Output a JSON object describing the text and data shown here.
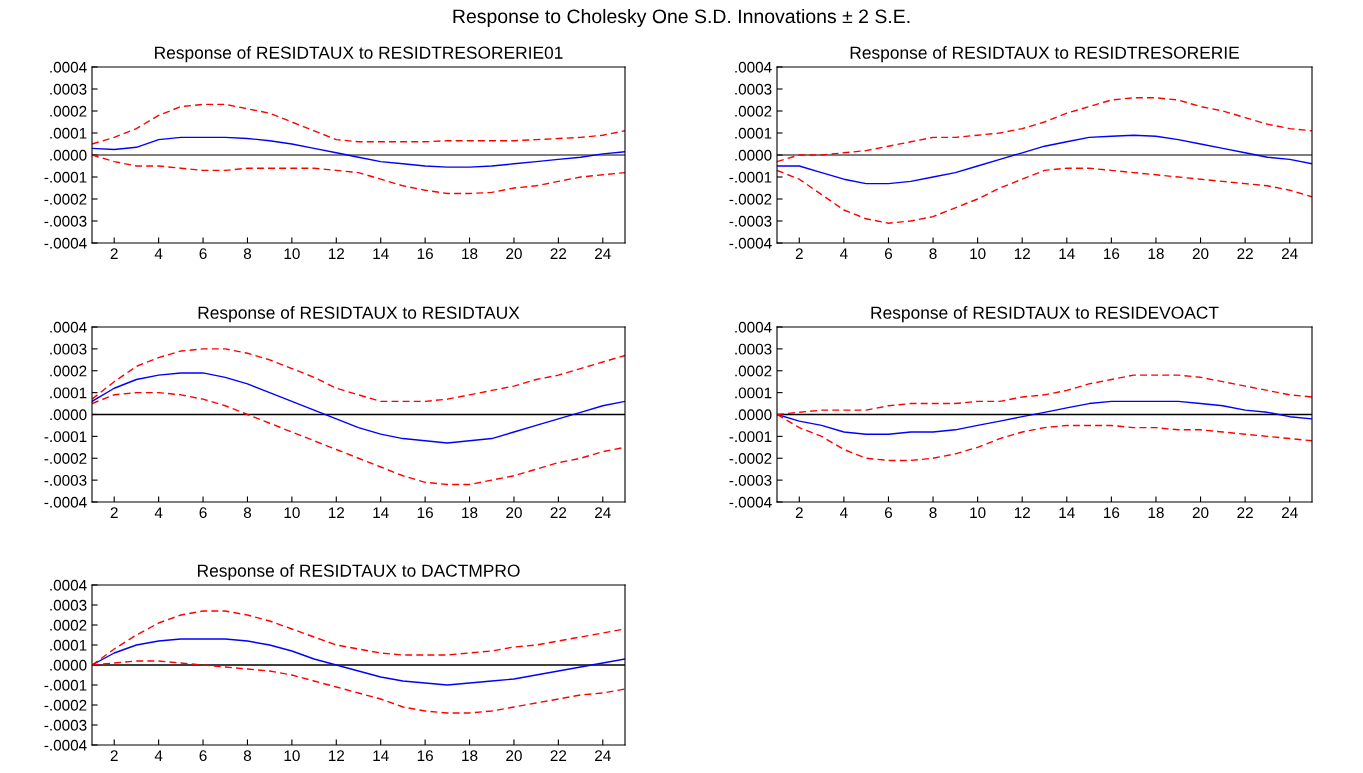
{
  "chart_data": [
    {
      "type": "line",
      "title": "Response of RESIDTAUX to RESIDTRESORERIE01",
      "annotations": [
        "Response to Cholesky One S.D. Innovations ± 2 S.E."
      ],
      "x": [
        1,
        2,
        3,
        4,
        5,
        6,
        7,
        8,
        9,
        10,
        11,
        12,
        13,
        14,
        15,
        16,
        17,
        18,
        19,
        20,
        21,
        22,
        23,
        24,
        25
      ],
      "xlim": [
        1,
        25
      ],
      "xticks": [
        2,
        4,
        6,
        8,
        10,
        12,
        14,
        16,
        18,
        20,
        22,
        24
      ],
      "ylim": [
        -0.0004,
        0.0004
      ],
      "yticks": [
        {
          "value": -0.0004,
          "label": "-.0004"
        },
        {
          "value": -0.0003,
          "label": "-.0003"
        },
        {
          "value": -0.0002,
          "label": "-.0002"
        },
        {
          "value": -0.0001,
          "label": "-.0001"
        },
        {
          "value": 0,
          "label": ".0000"
        },
        {
          "value": 0.0001,
          "label": ".0001"
        },
        {
          "value": 0.0002,
          "label": ".0002"
        },
        {
          "value": 0.0003,
          "label": ".0003"
        },
        {
          "value": 0.0004,
          "label": ".0004"
        }
      ],
      "ref_lines": [
        {
          "axis": "y",
          "value": 0,
          "color": "#000000"
        }
      ],
      "series": [
        {
          "color": "#0000ff",
          "line_style": "solid",
          "values": [
            3e-05,
            2.5e-05,
            3.5e-05,
            7e-05,
            8e-05,
            8e-05,
            8e-05,
            7.5e-05,
            6.5e-05,
            5e-05,
            3e-05,
            1e-05,
            -1e-05,
            -3e-05,
            -4e-05,
            -5e-05,
            -5.5e-05,
            -5.5e-05,
            -5e-05,
            -4e-05,
            -3e-05,
            -2e-05,
            -1e-05,
            5e-06,
            1.5e-05
          ]
        },
        {
          "color": "#ff0000",
          "line_style": "dashed",
          "values": [
            5e-05,
            8e-05,
            0.00012,
            0.00018,
            0.00022,
            0.00023,
            0.00023,
            0.00021,
            0.00019,
            0.00015,
            0.00011,
            7e-05,
            6e-05,
            6e-05,
            6e-05,
            6e-05,
            6.5e-05,
            6.5e-05,
            6.5e-05,
            6.5e-05,
            7e-05,
            7.5e-05,
            8e-05,
            9e-05,
            0.00011
          ]
        },
        {
          "color": "#ff0000",
          "line_style": "dashed",
          "values": [
            0,
            -3e-05,
            -5e-05,
            -5e-05,
            -6e-05,
            -7e-05,
            -7e-05,
            -6e-05,
            -6e-05,
            -6e-05,
            -6e-05,
            -7e-05,
            -8e-05,
            -0.00011,
            -0.00014,
            -0.00016,
            -0.000175,
            -0.000175,
            -0.00017,
            -0.00015,
            -0.00014,
            -0.00012,
            -0.0001,
            -9e-05,
            -8e-05
          ]
        }
      ]
    },
    {
      "type": "line",
      "title": "Response of RESIDTAUX to RESIDTRESORERIE",
      "x": [
        1,
        2,
        3,
        4,
        5,
        6,
        7,
        8,
        9,
        10,
        11,
        12,
        13,
        14,
        15,
        16,
        17,
        18,
        19,
        20,
        21,
        22,
        23,
        24,
        25
      ],
      "xlim": [
        1,
        25
      ],
      "xticks": [
        2,
        4,
        6,
        8,
        10,
        12,
        14,
        16,
        18,
        20,
        22,
        24
      ],
      "ylim": [
        -0.0004,
        0.0004
      ],
      "yticks": [
        {
          "value": -0.0004,
          "label": "-.0004"
        },
        {
          "value": -0.0003,
          "label": "-.0003"
        },
        {
          "value": -0.0002,
          "label": "-.0002"
        },
        {
          "value": -0.0001,
          "label": "-.0001"
        },
        {
          "value": 0,
          "label": ".0000"
        },
        {
          "value": 0.0001,
          "label": ".0001"
        },
        {
          "value": 0.0002,
          "label": ".0002"
        },
        {
          "value": 0.0003,
          "label": ".0003"
        },
        {
          "value": 0.0004,
          "label": ".0004"
        }
      ],
      "ref_lines": [
        {
          "axis": "y",
          "value": 0,
          "color": "#000000"
        }
      ],
      "series": [
        {
          "color": "#0000ff",
          "line_style": "solid",
          "values": [
            -5e-05,
            -5e-05,
            -8e-05,
            -0.00011,
            -0.00013,
            -0.00013,
            -0.00012,
            -0.0001,
            -8e-05,
            -5e-05,
            -2e-05,
            1e-05,
            4e-05,
            6e-05,
            8e-05,
            8.5e-05,
            9e-05,
            8.5e-05,
            7e-05,
            5e-05,
            3e-05,
            1e-05,
            -1e-05,
            -2e-05,
            -4e-05
          ]
        },
        {
          "color": "#ff0000",
          "line_style": "dashed",
          "values": [
            -3e-05,
            0,
            0,
            1e-05,
            2e-05,
            4e-05,
            6e-05,
            8e-05,
            8e-05,
            9e-05,
            0.0001,
            0.00012,
            0.00015,
            0.00019,
            0.00022,
            0.00025,
            0.00026,
            0.00026,
            0.00025,
            0.00022,
            0.0002,
            0.00017,
            0.00014,
            0.00012,
            0.00011
          ]
        },
        {
          "color": "#ff0000",
          "line_style": "dashed",
          "values": [
            -7e-05,
            -0.00011,
            -0.00018,
            -0.00025,
            -0.00029,
            -0.00031,
            -0.0003,
            -0.00028,
            -0.00024,
            -0.0002,
            -0.00015,
            -0.00011,
            -7e-05,
            -6e-05,
            -6e-05,
            -7e-05,
            -8e-05,
            -9e-05,
            -0.0001,
            -0.00011,
            -0.00012,
            -0.00013,
            -0.00014,
            -0.00016,
            -0.00019
          ]
        }
      ]
    },
    {
      "type": "line",
      "title": "Response of RESIDTAUX to RESIDTAUX",
      "x": [
        1,
        2,
        3,
        4,
        5,
        6,
        7,
        8,
        9,
        10,
        11,
        12,
        13,
        14,
        15,
        16,
        17,
        18,
        19,
        20,
        21,
        22,
        23,
        24,
        25
      ],
      "xlim": [
        1,
        25
      ],
      "xticks": [
        2,
        4,
        6,
        8,
        10,
        12,
        14,
        16,
        18,
        20,
        22,
        24
      ],
      "ylim": [
        -0.0004,
        0.0004
      ],
      "yticks": [
        {
          "value": -0.0004,
          "label": "-.0004"
        },
        {
          "value": -0.0003,
          "label": "-.0003"
        },
        {
          "value": -0.0002,
          "label": "-.0002"
        },
        {
          "value": -0.0001,
          "label": "-.0001"
        },
        {
          "value": 0,
          "label": ".0000"
        },
        {
          "value": 0.0001,
          "label": ".0001"
        },
        {
          "value": 0.0002,
          "label": ".0002"
        },
        {
          "value": 0.0003,
          "label": ".0003"
        },
        {
          "value": 0.0004,
          "label": ".0004"
        }
      ],
      "ref_lines": [
        {
          "axis": "y",
          "value": 0,
          "color": "#000000"
        }
      ],
      "series": [
        {
          "color": "#0000ff",
          "line_style": "solid",
          "values": [
            6e-05,
            0.00012,
            0.00016,
            0.00018,
            0.00019,
            0.00019,
            0.00017,
            0.00014,
            0.0001,
            6e-05,
            2e-05,
            -2e-05,
            -6e-05,
            -9e-05,
            -0.00011,
            -0.00012,
            -0.00013,
            -0.00012,
            -0.00011,
            -8e-05,
            -5e-05,
            -2e-05,
            1e-05,
            4e-05,
            6e-05
          ]
        },
        {
          "color": "#ff0000",
          "line_style": "dashed",
          "values": [
            7e-05,
            0.00015,
            0.00022,
            0.00026,
            0.00029,
            0.0003,
            0.0003,
            0.00028,
            0.00025,
            0.00021,
            0.00017,
            0.00012,
            9e-05,
            6e-05,
            6e-05,
            6e-05,
            7e-05,
            9e-05,
            0.00011,
            0.00013,
            0.00016,
            0.00018,
            0.00021,
            0.00024,
            0.00027
          ]
        },
        {
          "color": "#ff0000",
          "line_style": "dashed",
          "values": [
            5e-05,
            9e-05,
            0.0001,
            0.0001,
            9e-05,
            7e-05,
            4e-05,
            0,
            -4e-05,
            -8e-05,
            -0.00012,
            -0.00016,
            -0.0002,
            -0.00024,
            -0.00028,
            -0.00031,
            -0.00032,
            -0.00032,
            -0.0003,
            -0.00028,
            -0.00025,
            -0.00022,
            -0.0002,
            -0.00017,
            -0.00015
          ]
        }
      ]
    },
    {
      "type": "line",
      "title": "Response of RESIDTAUX to RESIDEVOACT",
      "x": [
        1,
        2,
        3,
        4,
        5,
        6,
        7,
        8,
        9,
        10,
        11,
        12,
        13,
        14,
        15,
        16,
        17,
        18,
        19,
        20,
        21,
        22,
        23,
        24,
        25
      ],
      "xlim": [
        1,
        25
      ],
      "xticks": [
        2,
        4,
        6,
        8,
        10,
        12,
        14,
        16,
        18,
        20,
        22,
        24
      ],
      "ylim": [
        -0.0004,
        0.0004
      ],
      "yticks": [
        {
          "value": -0.0004,
          "label": "-.0004"
        },
        {
          "value": -0.0003,
          "label": "-.0003"
        },
        {
          "value": -0.0002,
          "label": "-.0002"
        },
        {
          "value": -0.0001,
          "label": "-.0001"
        },
        {
          "value": 0,
          "label": ".0000"
        },
        {
          "value": 0.0001,
          "label": ".0001"
        },
        {
          "value": 0.0002,
          "label": ".0002"
        },
        {
          "value": 0.0003,
          "label": ".0003"
        },
        {
          "value": 0.0004,
          "label": ".0004"
        }
      ],
      "ref_lines": [
        {
          "axis": "y",
          "value": 0,
          "color": "#000000"
        }
      ],
      "series": [
        {
          "color": "#0000ff",
          "line_style": "solid",
          "values": [
            0,
            -3e-05,
            -5e-05,
            -8e-05,
            -9e-05,
            -9e-05,
            -8e-05,
            -8e-05,
            -7e-05,
            -5e-05,
            -3e-05,
            -1e-05,
            1e-05,
            3e-05,
            5e-05,
            6e-05,
            6e-05,
            6e-05,
            6e-05,
            5e-05,
            4e-05,
            2e-05,
            1e-05,
            -1e-05,
            -2e-05
          ]
        },
        {
          "color": "#ff0000",
          "line_style": "dashed",
          "values": [
            0,
            1e-05,
            2e-05,
            2e-05,
            2e-05,
            4e-05,
            5e-05,
            5e-05,
            5e-05,
            6e-05,
            6e-05,
            8e-05,
            9e-05,
            0.00011,
            0.00014,
            0.00016,
            0.00018,
            0.00018,
            0.00018,
            0.00017,
            0.00015,
            0.00013,
            0.00011,
            9e-05,
            8e-05
          ]
        },
        {
          "color": "#ff0000",
          "line_style": "dashed",
          "values": [
            0,
            -6e-05,
            -0.0001,
            -0.00016,
            -0.0002,
            -0.00021,
            -0.00021,
            -0.0002,
            -0.00018,
            -0.00015,
            -0.00011,
            -8e-05,
            -6e-05,
            -5e-05,
            -5e-05,
            -5e-05,
            -6e-05,
            -6e-05,
            -7e-05,
            -7e-05,
            -8e-05,
            -9e-05,
            -0.0001,
            -0.00011,
            -0.00012
          ]
        }
      ]
    },
    {
      "type": "line",
      "title": "Response of RESIDTAUX to DACTMPRO",
      "x": [
        1,
        2,
        3,
        4,
        5,
        6,
        7,
        8,
        9,
        10,
        11,
        12,
        13,
        14,
        15,
        16,
        17,
        18,
        19,
        20,
        21,
        22,
        23,
        24,
        25
      ],
      "xlim": [
        1,
        25
      ],
      "xticks": [
        2,
        4,
        6,
        8,
        10,
        12,
        14,
        16,
        18,
        20,
        22,
        24
      ],
      "ylim": [
        -0.0004,
        0.0004
      ],
      "yticks": [
        {
          "value": -0.0004,
          "label": "-.0004"
        },
        {
          "value": -0.0003,
          "label": "-.0003"
        },
        {
          "value": -0.0002,
          "label": "-.0002"
        },
        {
          "value": -0.0001,
          "label": "-.0001"
        },
        {
          "value": 0,
          "label": ".0000"
        },
        {
          "value": 0.0001,
          "label": ".0001"
        },
        {
          "value": 0.0002,
          "label": ".0002"
        },
        {
          "value": 0.0003,
          "label": ".0003"
        },
        {
          "value": 0.0004,
          "label": ".0004"
        }
      ],
      "ref_lines": [
        {
          "axis": "y",
          "value": 0,
          "color": "#000000"
        }
      ],
      "series": [
        {
          "color": "#0000ff",
          "line_style": "solid",
          "values": [
            0,
            6e-05,
            0.0001,
            0.00012,
            0.00013,
            0.00013,
            0.00013,
            0.00012,
            0.0001,
            7e-05,
            3e-05,
            0,
            -3e-05,
            -6e-05,
            -8e-05,
            -9e-05,
            -0.0001,
            -9e-05,
            -8e-05,
            -7e-05,
            -5e-05,
            -3e-05,
            -1e-05,
            1e-05,
            3e-05
          ]
        },
        {
          "color": "#ff0000",
          "line_style": "dashed",
          "values": [
            0,
            8e-05,
            0.00015,
            0.00021,
            0.00025,
            0.00027,
            0.00027,
            0.00025,
            0.00022,
            0.00018,
            0.00014,
            0.0001,
            8e-05,
            6e-05,
            5e-05,
            5e-05,
            5e-05,
            6e-05,
            7e-05,
            9e-05,
            0.0001,
            0.00012,
            0.00014,
            0.00016,
            0.00018
          ]
        },
        {
          "color": "#ff0000",
          "line_style": "dashed",
          "values": [
            0,
            1e-05,
            2e-05,
            2e-05,
            1e-05,
            0,
            -1e-05,
            -2e-05,
            -3e-05,
            -5e-05,
            -8e-05,
            -0.00011,
            -0.00014,
            -0.00017,
            -0.00021,
            -0.00023,
            -0.00024,
            -0.00024,
            -0.00023,
            -0.00021,
            -0.00019,
            -0.00017,
            -0.00015,
            -0.00014,
            -0.00012
          ]
        }
      ]
    }
  ]
}
